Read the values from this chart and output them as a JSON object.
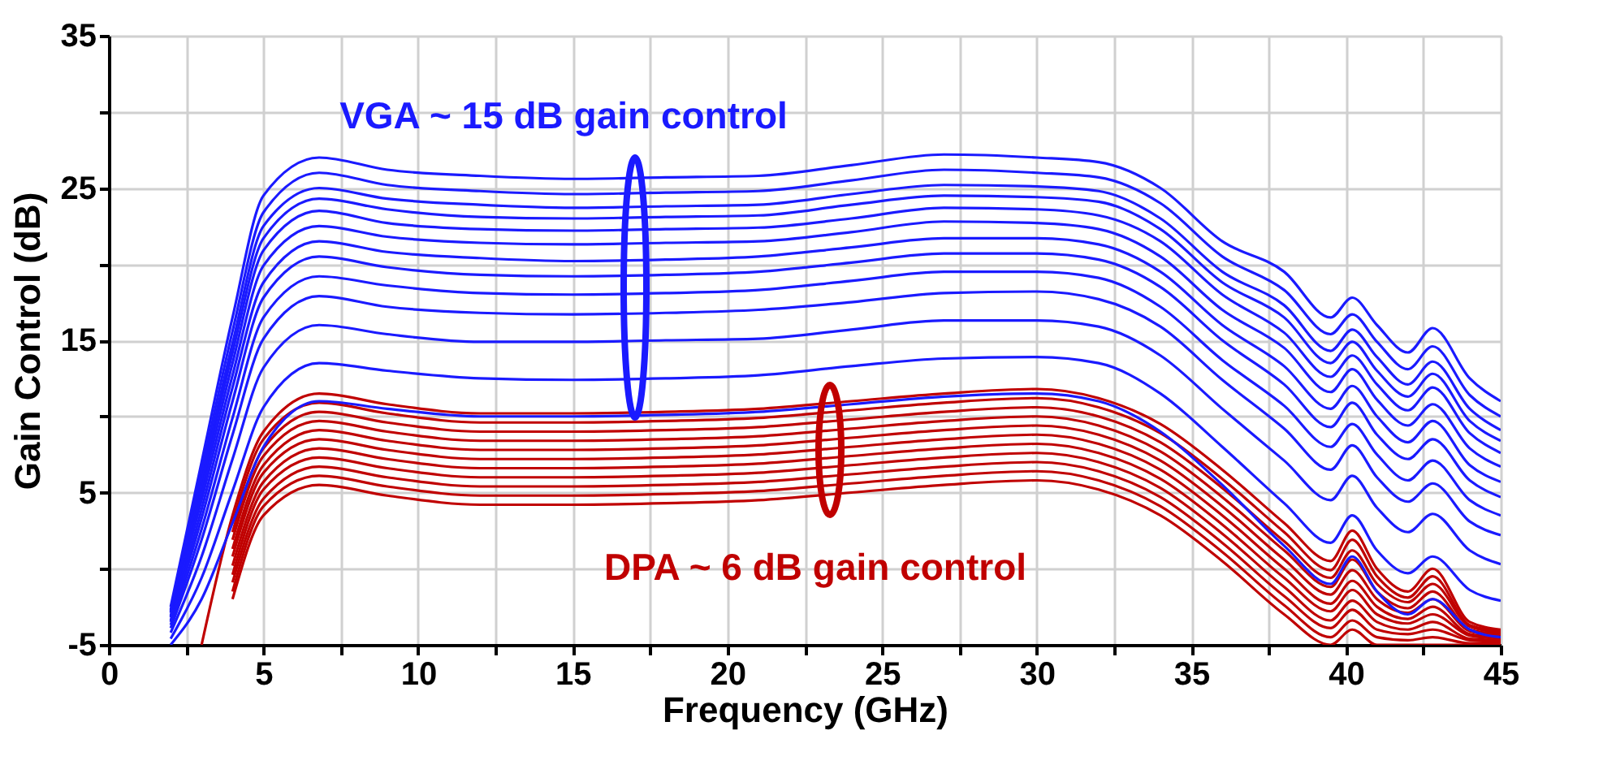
{
  "chart_data": {
    "type": "line",
    "xlabel": "Frequency (GHz)",
    "ylabel": "Gain Control (dB)",
    "xlim": [
      0,
      45
    ],
    "ylim": [
      -5,
      35
    ],
    "xticks": [
      0,
      {
        "value": 2.5,
        "label": null
      },
      5,
      {
        "value": 7.5,
        "label": null
      },
      10,
      {
        "value": 12.5,
        "label": null
      },
      15,
      {
        "value": 17.5,
        "label": null
      },
      20,
      {
        "value": 22.5,
        "label": null
      },
      25,
      {
        "value": 27.5,
        "label": null
      },
      30,
      {
        "value": 32.5,
        "label": null
      },
      35,
      {
        "value": 37.5,
        "label": null
      },
      40,
      {
        "value": 42.5,
        "label": null
      },
      45
    ],
    "yticks": [
      -5,
      {
        "value": 0,
        "label": null
      },
      5,
      {
        "value": 10,
        "label": null
      },
      15,
      {
        "value": 20,
        "label": null
      },
      25,
      {
        "value": 30,
        "label": null
      },
      35
    ],
    "grid": true,
    "line_style": "solid",
    "marker": "none",
    "annotations": [
      "VGA ~ 15 dB gain control",
      "DPA ~ 6 dB gain control"
    ],
    "x": [
      2,
      3,
      4,
      5,
      6.8,
      9,
      12,
      15,
      18,
      21,
      24,
      27,
      30,
      32,
      34,
      36,
      38,
      39.5,
      40.2,
      41,
      42,
      42.8,
      44,
      45
    ],
    "series": [
      {
        "color": "#1a1aff",
        "values": [
          -2.5,
          7,
          16.5,
          24.5,
          27,
          26.2,
          25.8,
          25.6,
          25.7,
          25.8,
          26.5,
          27.2,
          27,
          26.7,
          25,
          21.5,
          19.5,
          16.5,
          17.8,
          16,
          14.2,
          15.8,
          12.5,
          11
        ]
      },
      {
        "color": "#1a1aff",
        "values": [
          -2.7,
          6.4,
          15.6,
          23.4,
          26.0,
          25.2,
          24.8,
          24.6,
          24.7,
          24.8,
          25.5,
          26.2,
          26.0,
          25.7,
          24.0,
          20.5,
          18.3,
          15.4,
          16.7,
          14.9,
          13.1,
          14.6,
          11.4,
          10.0
        ]
      },
      {
        "color": "#1a1aff",
        "values": [
          -2.8,
          5.9,
          14.8,
          22.5,
          25.0,
          24.3,
          23.9,
          23.7,
          23.8,
          23.9,
          24.6,
          25.2,
          25.1,
          24.8,
          23.0,
          19.5,
          17.3,
          14.3,
          15.7,
          13.9,
          12.1,
          13.6,
          10.5,
          9.1
        ]
      },
      {
        "color": "#1a1aff",
        "values": [
          -2.9,
          5.5,
          14.2,
          21.7,
          24.3,
          23.6,
          23.1,
          23.0,
          23.1,
          23.2,
          23.9,
          24.5,
          24.4,
          24.1,
          22.3,
          18.8,
          16.5,
          13.5,
          14.9,
          13.0,
          11.3,
          12.8,
          9.7,
          8.4
        ]
      },
      {
        "color": "#1a1aff",
        "values": [
          -3.1,
          5.0,
          13.5,
          20.9,
          23.5,
          22.7,
          22.3,
          22.2,
          22.3,
          22.4,
          23.0,
          23.7,
          23.6,
          23.2,
          21.5,
          18.0,
          15.5,
          12.6,
          14.0,
          12.1,
          10.4,
          11.9,
          8.9,
          7.6
        ]
      },
      {
        "color": "#1a1aff",
        "values": [
          -3.2,
          4.5,
          12.7,
          19.9,
          22.5,
          21.8,
          21.4,
          21.3,
          21.4,
          21.5,
          22.1,
          22.8,
          22.7,
          22.3,
          20.5,
          17.0,
          14.5,
          11.6,
          13.1,
          11.1,
          9.4,
          10.8,
          7.9,
          6.7
        ]
      },
      {
        "color": "#1a1aff",
        "values": [
          -3.4,
          3.9,
          11.9,
          18.8,
          21.5,
          20.8,
          20.4,
          20.2,
          20.3,
          20.5,
          21.1,
          21.7,
          21.7,
          21.3,
          19.5,
          16.0,
          13.3,
          10.5,
          12.0,
          10.0,
          8.3,
          9.7,
          6.8,
          5.7
        ]
      },
      {
        "color": "#1a1aff",
        "values": [
          -3.5,
          3.3,
          11.0,
          17.8,
          20.5,
          19.8,
          19.3,
          19.2,
          19.3,
          19.5,
          20.1,
          20.7,
          20.7,
          20.3,
          18.5,
          15.0,
          12.1,
          9.3,
          10.9,
          8.8,
          7.2,
          8.5,
          5.8,
          4.7
        ]
      },
      {
        "color": "#1a1aff",
        "values": [
          -3.7,
          2.6,
          9.9,
          16.5,
          19.2,
          18.6,
          18.1,
          18.0,
          18.1,
          18.3,
          18.9,
          19.5,
          19.5,
          19.1,
          17.2,
          13.7,
          10.7,
          8.0,
          9.5,
          7.5,
          5.8,
          7.1,
          4.5,
          3.5
        ]
      },
      {
        "color": "#1a1aff",
        "values": [
          -3.9,
          1.9,
          8.8,
          15.1,
          17.9,
          17.2,
          16.8,
          16.7,
          16.8,
          17.0,
          17.5,
          18.1,
          18.2,
          17.7,
          15.9,
          12.4,
          9.2,
          6.5,
          8.1,
          6.0,
          4.4,
          5.6,
          3.1,
          2.2
        ]
      },
      {
        "color": "#1a1aff",
        "values": [
          -4.2,
          0.8,
          7.2,
          13.2,
          16.0,
          15.4,
          14.9,
          14.9,
          15.0,
          15.1,
          15.7,
          16.3,
          16.3,
          15.9,
          14.0,
          10.5,
          7.1,
          4.5,
          6.1,
          4.0,
          2.4,
          3.6,
          1.2,
          0.3
        ]
      },
      {
        "color": "#1a1aff",
        "values": [
          -4.6,
          -0.6,
          5.1,
          10.6,
          13.5,
          13.0,
          12.5,
          12.4,
          12.5,
          12.7,
          13.3,
          13.8,
          13.9,
          13.5,
          11.5,
          8.0,
          4.3,
          1.7,
          3.5,
          1.2,
          -0.3,
          0.8,
          -1.4,
          -2.1
        ]
      },
      {
        "color": "#1a1aff",
        "values": [
          -5,
          -2,
          3,
          8,
          11,
          10.5,
          10,
          10,
          10.1,
          10.3,
          10.8,
          11.3,
          11.5,
          11,
          9,
          5.5,
          1.5,
          -1,
          0.8,
          -1.5,
          -3,
          -2,
          -4,
          -4.5
        ]
      },
      {
        "color": "#c00000",
        "values": [
          null,
          -5,
          3.5,
          9,
          11.5,
          10.8,
          10.2,
          10.2,
          10.3,
          10.5,
          11,
          11.5,
          11.8,
          11.2,
          9.5,
          6.5,
          3,
          0.5,
          2.5,
          0,
          -1.5,
          0,
          -3.5,
          -4
        ]
      },
      {
        "color": "#c00000",
        "values": [
          null,
          null,
          3.0,
          8.5,
          10.9,
          10.2,
          9.6,
          9.6,
          9.7,
          9.9,
          10.4,
          10.9,
          11.2,
          10.6,
          8.9,
          5.9,
          2.4,
          -0.1,
          1.9,
          -0.5,
          -1.9,
          -0.5,
          -3.7,
          -4.1
        ]
      },
      {
        "color": "#c00000",
        "values": [
          null,
          null,
          2.4,
          7.9,
          10.3,
          9.6,
          9,
          9,
          9.1,
          9.3,
          9.8,
          10.3,
          10.6,
          10,
          8.3,
          5.3,
          1.8,
          -0.6,
          1.2,
          -1,
          -2.2,
          -1,
          -3.8,
          -4.2
        ]
      },
      {
        "color": "#c00000",
        "values": [
          null,
          null,
          1.9,
          7.4,
          9.7,
          9,
          8.4,
          8.4,
          8.5,
          8.7,
          9.2,
          9.7,
          10,
          9.4,
          7.7,
          4.7,
          1.2,
          -1.2,
          0.6,
          -1.5,
          -2.6,
          -1.5,
          -4.0,
          -4.3
        ]
      },
      {
        "color": "#c00000",
        "values": [
          null,
          null,
          1.3,
          6.8,
          9.1,
          8.4,
          7.8,
          7.8,
          7.9,
          8.1,
          8.6,
          9.1,
          9.4,
          8.8,
          7.1,
          4.1,
          0.6,
          -1.7,
          -0.1,
          -2,
          -2.9,
          -2,
          -4.1,
          -4.4
        ]
      },
      {
        "color": "#c00000",
        "values": [
          null,
          null,
          0.8,
          6.3,
          8.5,
          7.8,
          7.2,
          7.2,
          7.3,
          7.5,
          8,
          8.5,
          8.8,
          8.2,
          6.5,
          3.5,
          0,
          -2.3,
          -0.8,
          -2.5,
          -3.3,
          -2.5,
          -4.3,
          -4.5
        ]
      },
      {
        "color": "#c00000",
        "values": [
          null,
          null,
          0.2,
          5.7,
          7.9,
          7.2,
          6.6,
          6.6,
          6.7,
          6.9,
          7.4,
          7.9,
          8.2,
          7.6,
          5.9,
          2.9,
          -0.6,
          -2.8,
          -1.4,
          -3,
          -3.6,
          -3,
          -4.4,
          -4.6
        ]
      },
      {
        "color": "#c00000",
        "values": [
          null,
          null,
          -0.4,
          5.2,
          7.3,
          6.6,
          6,
          6,
          6.1,
          6.3,
          6.8,
          7.3,
          7.6,
          7,
          5.3,
          2.3,
          -1.2,
          -3.4,
          -2.1,
          -3.5,
          -4.0,
          -3.5,
          -4.6,
          -4.7
        ]
      },
      {
        "color": "#c00000",
        "values": [
          null,
          null,
          -0.9,
          4.6,
          6.7,
          6,
          5.4,
          5.4,
          5.5,
          5.7,
          6.2,
          6.7,
          7,
          6.4,
          4.7,
          1.7,
          -1.8,
          -3.9,
          -2.7,
          -4,
          -4.3,
          -4,
          -4.7,
          -4.8
        ]
      },
      {
        "color": "#c00000",
        "values": [
          null,
          null,
          -1.5,
          4.1,
          6.1,
          5.4,
          4.8,
          4.8,
          4.9,
          5.1,
          5.6,
          6.1,
          6.4,
          5.8,
          4.1,
          1.1,
          -2.4,
          -4.5,
          -3.4,
          -4.5,
          -4.7,
          -4.5,
          -4.9,
          -4.9
        ]
      },
      {
        "color": "#c00000",
        "values": [
          null,
          null,
          -2,
          3.5,
          5.5,
          4.8,
          4.2,
          4.2,
          4.3,
          4.5,
          5,
          5.5,
          5.8,
          5.2,
          3.5,
          0.5,
          -3,
          -5,
          -4,
          -5,
          -5,
          -5,
          -5,
          -5
        ]
      }
    ]
  }
}
